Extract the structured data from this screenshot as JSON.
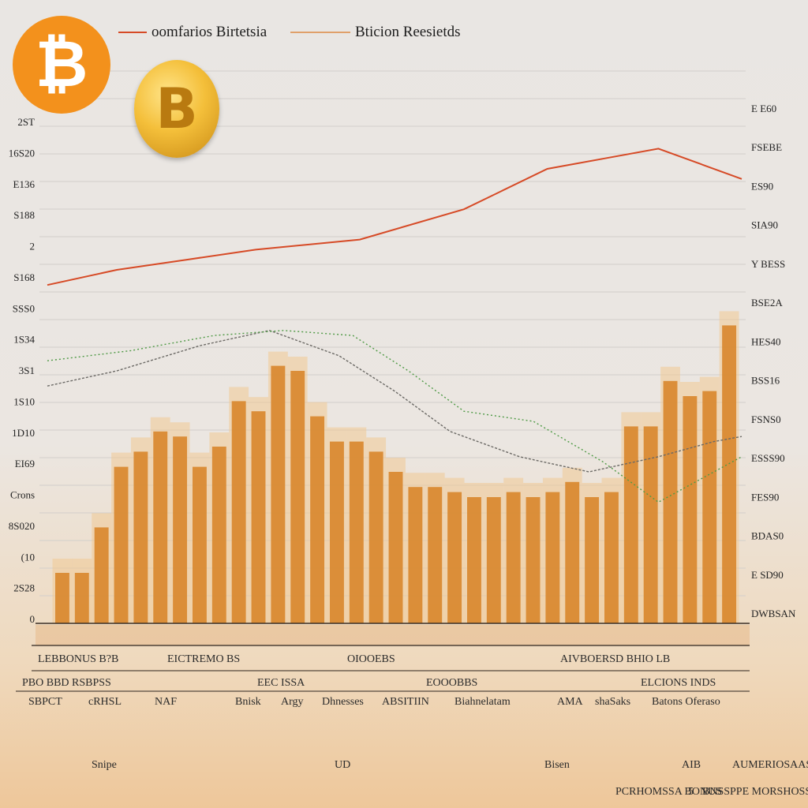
{
  "icons": {
    "flat_coin": "bitcoin-icon",
    "gold_coin": "bitcoin-gold-coin-icon"
  },
  "coins": {
    "flat_symbol": "₿",
    "gold_symbol": "B"
  },
  "colors": {
    "background": "#e9e6e3",
    "bar": "#d9882f",
    "bar_ghost": "#f0c994",
    "line_primary": "#d64a26",
    "line_secondary": "#6c6a66",
    "line_accent": "#4f9a46",
    "coin_orange": "#f3911c"
  },
  "legend": [
    {
      "label": "oomfarios Birtetsia",
      "color": "#d64a26"
    },
    {
      "label": "Bticion Reesietds",
      "color": "#e0a06a"
    }
  ],
  "chart_data": {
    "type": "bar",
    "title": "",
    "xlabel": "",
    "ylabel": "",
    "y_left_ticks": [
      "2ST",
      "16S20",
      "E136",
      "S188",
      "2",
      "S168",
      "SSS0",
      "1S34",
      "3S1",
      "1S10",
      "1D10",
      "EI69",
      "Crons",
      "8S020",
      "(10",
      "2S28",
      "0"
    ],
    "y_right_ticks": [
      "E E60",
      "FSEBE",
      "ES90",
      "SIA90",
      "Y BESS",
      "BSE2A",
      "HES40",
      "BSS16",
      "FSNS0",
      "ESSS90",
      "FES90",
      "BDAS0",
      "E SD90",
      "DWBSAN"
    ],
    "ylim": [
      0,
      100
    ],
    "grid": true,
    "bar_series": {
      "name": "",
      "values": [
        10,
        10,
        19,
        31,
        34,
        38,
        37,
        31,
        35,
        44,
        42,
        51,
        50,
        41,
        36,
        36,
        34,
        30,
        27,
        27,
        26,
        25,
        25,
        26,
        25,
        26,
        28,
        25,
        26,
        39,
        39,
        48,
        45,
        46,
        59
      ]
    },
    "line_series": [
      {
        "name": "",
        "x": [
          0,
          10,
          20,
          30,
          45,
          60,
          72,
          80,
          88,
          100
        ],
        "y": [
          67,
          70,
          72,
          74,
          76,
          82,
          90,
          92,
          94,
          88
        ]
      },
      {
        "name": "",
        "x": [
          0,
          10,
          22,
          32,
          42,
          50,
          58,
          68,
          78,
          88,
          96,
          100
        ],
        "y": [
          47,
          50,
          55,
          58,
          53,
          46,
          38,
          33,
          30,
          33,
          36,
          37
        ]
      },
      {
        "name": "",
        "x": [
          0,
          12,
          24,
          34,
          44,
          52,
          60,
          70,
          80,
          88,
          100
        ],
        "y": [
          52,
          54,
          57,
          58,
          57,
          50,
          42,
          40,
          32,
          24,
          33
        ]
      }
    ]
  },
  "footer": {
    "row1": [
      "LEBBONUS B?B",
      "EICTREMO BS",
      "OIOOEBS",
      "AIVBOERSD BHIO LB"
    ],
    "row2": [
      "PBO BBD RSBPSS",
      "EEC ISSA",
      "EOOOBBS",
      "ELCIONS INDS"
    ],
    "row3": [
      "SBPCT",
      "cRHSL",
      "NAF",
      "Bnisk",
      "Argy",
      "Dhnesses",
      "ABSITIIN",
      "Biahnelatam",
      "AMA",
      "shaSaks",
      "Batons Oferaso"
    ],
    "row4": [
      "Snipe",
      "UD",
      "Bisen",
      "AIB",
      "AUMERIOSAASSE"
    ],
    "row5": [
      "PCRHOMSSA BONUS",
      "5",
      "BNSSPPE MORSHOSSS"
    ]
  }
}
